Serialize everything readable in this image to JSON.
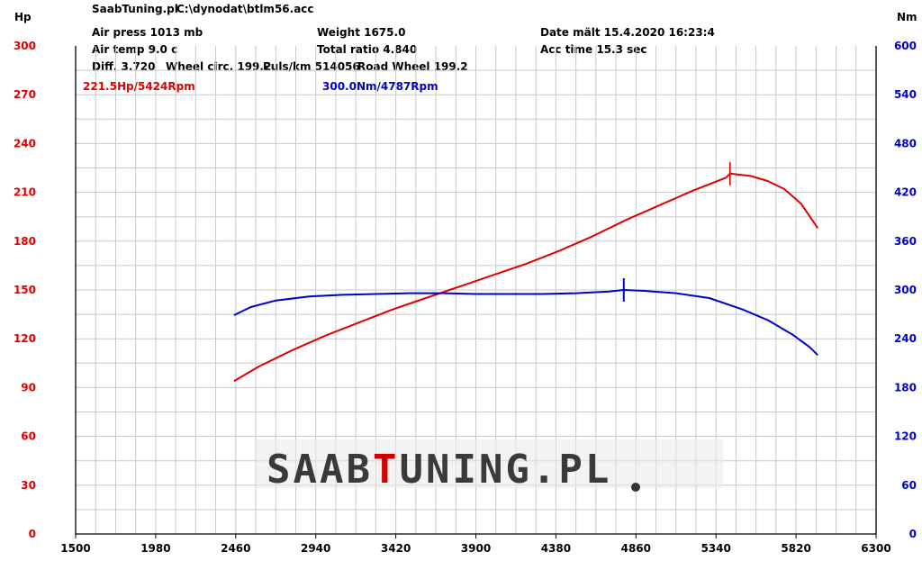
{
  "header": {
    "app": "SaabTuning.pl",
    "file": "C:\\dynodat\\btlm56.acc",
    "air_press": "Air press  1013 mb",
    "weight": "Weight   1675.0",
    "date": "Date mält 15.4.2020 16:23:4",
    "air_temp": "Air temp   9.0 c",
    "total_ratio": "Total ratio 4.840",
    "acc_time": "Acc time   15.3 sec",
    "diff": "Diff.     3.720",
    "wheel_circ": "Wheel circ. 199.2",
    "puls": "Puls/km   514056",
    "road_wheel": "Road Wheel 199.2"
  },
  "logo": {
    "part1": "SAAB",
    "part2": "T",
    "part3": "UNING.PL",
    "color_main": "#3a3a3a",
    "color_accent": "#d40000"
  },
  "chart_data": {
    "type": "line",
    "xlim": [
      1500,
      6300
    ],
    "x_ticks": [
      1500,
      1980,
      2460,
      2940,
      3420,
      3900,
      4380,
      4860,
      5340,
      5820,
      6300
    ],
    "left_axis": {
      "label": "Hp",
      "lim": [
        0,
        300
      ],
      "ticks": [
        0,
        30,
        60,
        90,
        120,
        150,
        180,
        210,
        240,
        270,
        300
      ],
      "color": "#e00000"
    },
    "right_axis": {
      "label": "Nm",
      "lim": [
        0,
        600
      ],
      "ticks": [
        0,
        60,
        120,
        180,
        240,
        300,
        360,
        420,
        480,
        540,
        600
      ],
      "color": "#0000cc"
    },
    "grid": true,
    "series": [
      {
        "name": "Hp",
        "axis": "left",
        "color": "#e00000",
        "x": [
          2450,
          2600,
          2800,
          3000,
          3200,
          3400,
          3600,
          3800,
          4000,
          4200,
          4400,
          4600,
          4800,
          5000,
          5200,
          5400,
          5424,
          5550,
          5650,
          5750,
          5850,
          5950
        ],
        "y": [
          94,
          103,
          113,
          122,
          130,
          138,
          145,
          152,
          159,
          166,
          174,
          183,
          193,
          202,
          211,
          219,
          221.5,
          220,
          217,
          212,
          203,
          188
        ]
      },
      {
        "name": "Nm",
        "axis": "right",
        "color": "#0000cc",
        "x": [
          2450,
          2550,
          2700,
          2900,
          3100,
          3300,
          3500,
          3700,
          3900,
          4100,
          4300,
          4500,
          4700,
          4787,
          4900,
          5100,
          5300,
          5500,
          5650,
          5800,
          5900,
          5950
        ],
        "y": [
          269,
          279,
          287,
          292,
          294,
          295,
          296,
          296,
          295,
          295,
          295,
          296,
          298,
          300,
          299,
          296,
          290,
          276,
          263,
          245,
          230,
          220
        ]
      }
    ],
    "peaks": {
      "hp": {
        "label": "221.5Hp/5424Rpm",
        "x": 5424,
        "y": 221.5
      },
      "nm": {
        "label": "300.0Nm/4787Rpm",
        "x": 4787,
        "y": 300.0
      }
    }
  }
}
